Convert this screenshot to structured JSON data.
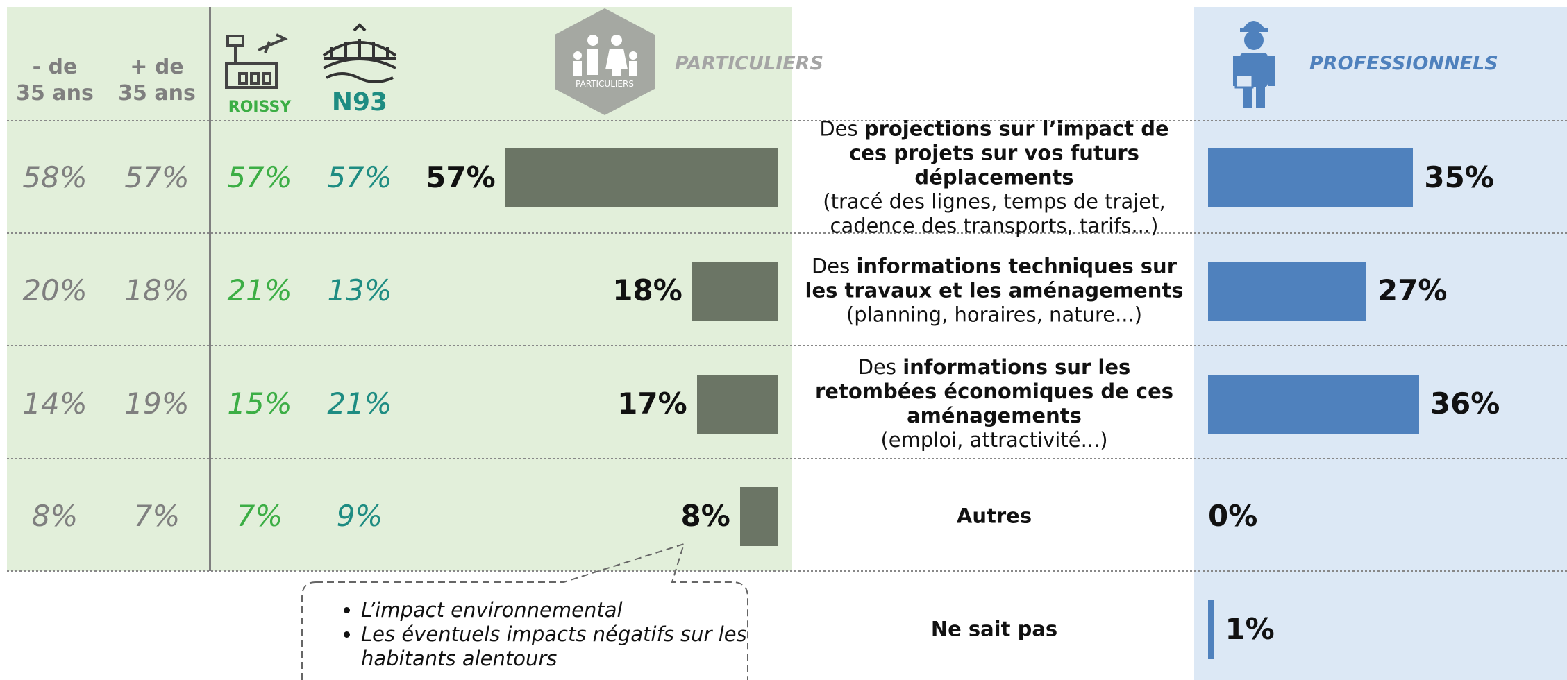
{
  "chart_data": {
    "type": "bar",
    "particuliers_label": "PARTICULIERS",
    "icon_label": "PARTICULIERS",
    "professionnels_label": "PROFESSIONNELS",
    "columns": [
      {
        "name": [
          "- de",
          "35 ans"
        ],
        "color": "#7f7f7f",
        "values": [
          58,
          20,
          14,
          8,
          null
        ],
        "value_labels": [
          "58%",
          "20%",
          "14%",
          "8%",
          null
        ]
      },
      {
        "name": [
          "+ de",
          "35 ans"
        ],
        "color": "#7f7f7f",
        "values": [
          57,
          18,
          19,
          7,
          null
        ],
        "value_labels": [
          "57%",
          "18%",
          "19%",
          "7%",
          null
        ]
      },
      {
        "name": [
          "ROISSY"
        ],
        "color": "#3cae45",
        "values": [
          57,
          21,
          15,
          7,
          null
        ],
        "value_labels": [
          "57%",
          "21%",
          "15%",
          "7%",
          null
        ]
      },
      {
        "name": [
          "N93"
        ],
        "color": "#1e8c82",
        "values": [
          57,
          13,
          21,
          9,
          null
        ],
        "value_labels": [
          "57%",
          "13%",
          "21%",
          "9%",
          null
        ]
      }
    ],
    "categories": [
      {
        "intro": "Des ",
        "bold": "projections sur l’impact de ces projets sur vos futurs déplacements",
        "detail": "(tracé des lignes, temps de trajet, cadence des transports, tarifs...)"
      },
      {
        "intro": "Des ",
        "bold": "informations techniques sur les travaux et les aménagements",
        "detail": "(planning, horaires, nature...)"
      },
      {
        "intro": "Des ",
        "bold": "informations sur les retombées économiques de ces aménagements",
        "detail": "(emploi, attractivité...)"
      },
      {
        "bold": "Autres"
      },
      {
        "bold": "Ne sait pas"
      }
    ],
    "series": [
      {
        "name": "PARTICULIERS",
        "color": "#6b7565",
        "xlim": [
          0,
          100
        ],
        "values": [
          57,
          18,
          17,
          8,
          null
        ],
        "value_labels": [
          "57%",
          "18%",
          "17%",
          "8%",
          null
        ]
      },
      {
        "name": "PROFESSIONNELS",
        "color": "#4f81bd",
        "xlim": [
          0,
          100
        ],
        "values": [
          35,
          27,
          36,
          0,
          1
        ],
        "value_labels": [
          "35%",
          "27%",
          "36%",
          "0%",
          "1%"
        ]
      }
    ],
    "annotation": [
      "L’impact environnemental",
      "Les éventuels impacts négatifs sur les habitants alentours"
    ]
  }
}
